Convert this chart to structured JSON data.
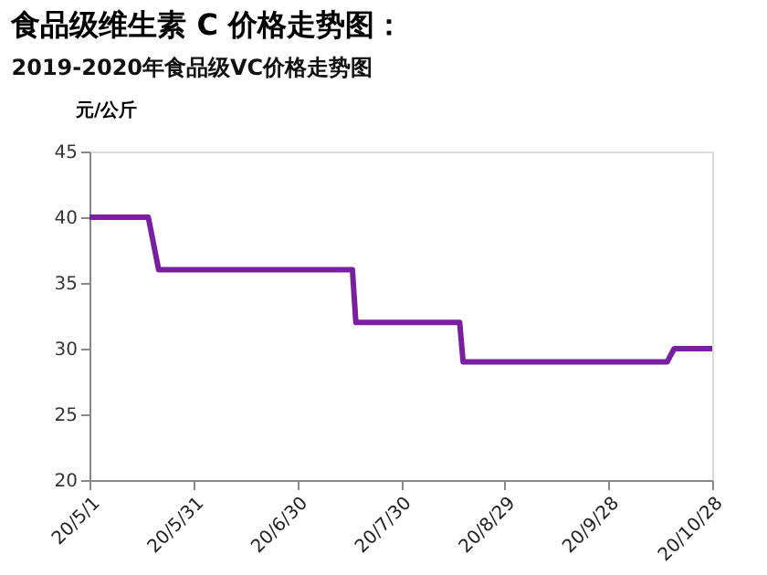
{
  "chart_data": {
    "type": "line",
    "title": "食品级维生素 C 价格走势图：",
    "subtitle": "2019-2020年食品级VC价格走势图",
    "ylabel": "元/公斤",
    "x": [
      "2020-05-01",
      "2020-05-18",
      "2020-05-21",
      "2020-07-16",
      "2020-07-17",
      "2020-08-16",
      "2020-08-17",
      "2020-10-15",
      "2020-10-17",
      "2020-10-28"
    ],
    "series": [
      {
        "color": "#7b1fa2",
        "values": [
          40,
          40,
          36,
          36,
          32,
          32,
          29,
          29,
          30,
          30
        ]
      }
    ],
    "xlim": [
      "2020-05-01",
      "2020-10-28"
    ],
    "xticks": [
      {
        "value": "2020-05-01",
        "label": "20/5/1"
      },
      {
        "value": "2020-05-31",
        "label": "20/5/31"
      },
      {
        "value": "2020-06-30",
        "label": "20/6/30"
      },
      {
        "value": "2020-07-30",
        "label": "20/7/30"
      },
      {
        "value": "2020-08-29",
        "label": "20/8/29"
      },
      {
        "value": "2020-09-28",
        "label": "20/9/28"
      },
      {
        "value": "2020-10-28",
        "label": "20/10/28"
      }
    ],
    "ylim": [
      20,
      45
    ],
    "yticks": [
      20,
      25,
      30,
      35,
      40,
      45
    ],
    "grid": false,
    "marker": "none",
    "line_style": "solid"
  }
}
